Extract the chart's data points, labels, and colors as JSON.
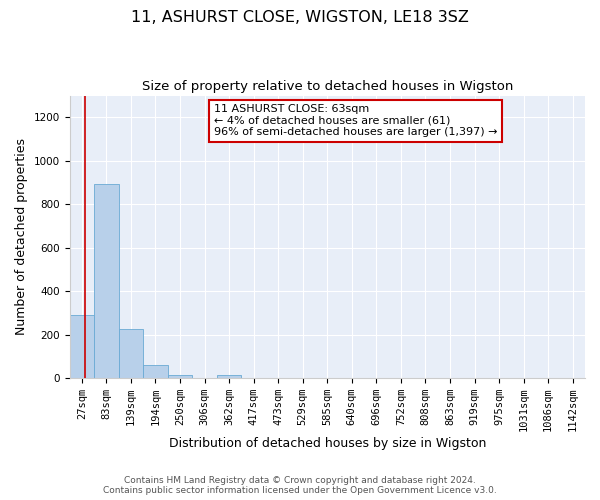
{
  "title": "11, ASHURST CLOSE, WIGSTON, LE18 3SZ",
  "subtitle": "Size of property relative to detached houses in Wigston",
  "xlabel": "Distribution of detached houses by size in Wigston",
  "ylabel": "Number of detached properties",
  "bin_labels": [
    "27sqm",
    "83sqm",
    "139sqm",
    "194sqm",
    "250sqm",
    "306sqm",
    "362sqm",
    "417sqm",
    "473sqm",
    "529sqm",
    "585sqm",
    "640sqm",
    "696sqm",
    "752sqm",
    "808sqm",
    "863sqm",
    "919sqm",
    "975sqm",
    "1031sqm",
    "1086sqm",
    "1142sqm"
  ],
  "bar_heights": [
    290,
    893,
    225,
    58,
    12,
    0,
    12,
    0,
    0,
    0,
    0,
    0,
    0,
    0,
    0,
    0,
    0,
    0,
    0,
    0,
    0
  ],
  "bar_color": "#b8d0ea",
  "bar_edge_color": "#6aaad4",
  "ax_bg_color": "#e8eef8",
  "fig_bg_color": "#ffffff",
  "grid_color": "#ffffff",
  "ylim": [
    0,
    1300
  ],
  "yticks": [
    0,
    200,
    400,
    600,
    800,
    1000,
    1200
  ],
  "property_line_color": "#cc0000",
  "annotation_text": "11 ASHURST CLOSE: 63sqm\n← 4% of detached houses are smaller (61)\n96% of semi-detached houses are larger (1,397) →",
  "annotation_box_color": "#cc0000",
  "footer_line1": "Contains HM Land Registry data © Crown copyright and database right 2024.",
  "footer_line2": "Contains public sector information licensed under the Open Government Licence v3.0.",
  "title_fontsize": 11.5,
  "subtitle_fontsize": 9.5,
  "tick_fontsize": 7.5,
  "ylabel_fontsize": 9,
  "xlabel_fontsize": 9,
  "annotation_fontsize": 8,
  "footer_fontsize": 6.5
}
